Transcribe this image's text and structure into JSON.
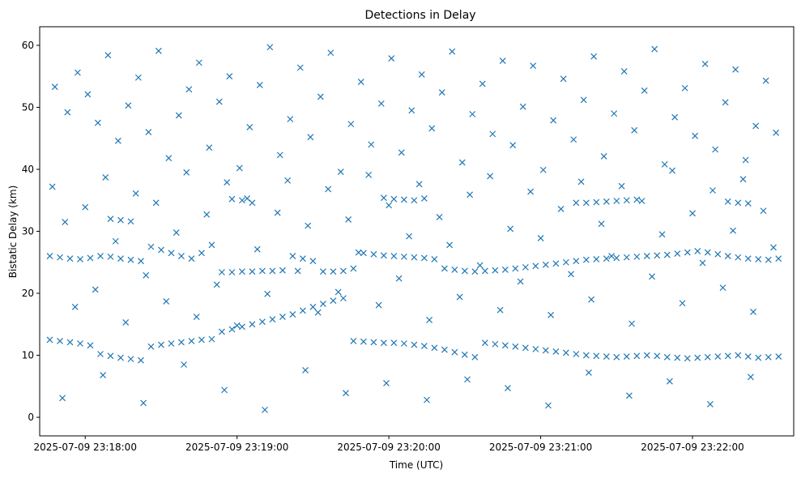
{
  "chart_data": {
    "type": "scatter",
    "title": "Detections in Delay",
    "xlabel": "Time (UTC)",
    "ylabel": "Bistatic Delay (km)",
    "x_start": "2025-07-09 23:17:46",
    "x_end": "2025-07-09 23:22:36",
    "xlim": [
      "2025-07-09 23:17:42",
      "2025-07-09 23:22:40"
    ],
    "ylim": [
      -3,
      63
    ],
    "x_ticks": [
      "2025-07-09 23:18:00",
      "2025-07-09 23:19:00",
      "2025-07-09 23:20:00",
      "2025-07-09 23:21:00",
      "2025-07-09 23:22:00"
    ],
    "y_ticks": [
      0,
      10,
      20,
      30,
      40,
      50,
      60
    ],
    "grid": false,
    "marker": "x",
    "color": "#1f77b4",
    "series": [
      {
        "x": [
          "2025-07-09 23:17:46",
          "2025-07-09 23:17:50",
          "2025-07-09 23:17:54",
          "2025-07-09 23:17:58",
          "2025-07-09 23:18:02",
          "2025-07-09 23:18:06",
          "2025-07-09 23:18:10",
          "2025-07-09 23:18:14",
          "2025-07-09 23:18:18",
          "2025-07-09 23:18:22",
          "2025-07-09 23:18:26",
          "2025-07-09 23:18:30",
          "2025-07-09 23:18:34",
          "2025-07-09 23:18:38",
          "2025-07-09 23:18:42",
          "2025-07-09 23:18:46",
          "2025-07-09 23:18:50",
          "2025-07-09 23:18:54",
          "2025-07-09 23:18:58",
          "2025-07-09 23:19:02",
          "2025-07-09 23:19:06",
          "2025-07-09 23:19:10",
          "2025-07-09 23:19:14",
          "2025-07-09 23:19:18",
          "2025-07-09 23:19:22",
          "2025-07-09 23:19:26",
          "2025-07-09 23:19:30",
          "2025-07-09 23:19:34",
          "2025-07-09 23:19:38",
          "2025-07-09 23:19:42",
          "2025-07-09 23:19:46",
          "2025-07-09 23:19:50",
          "2025-07-09 23:19:54",
          "2025-07-09 23:19:58",
          "2025-07-09 23:20:02",
          "2025-07-09 23:20:06",
          "2025-07-09 23:20:10",
          "2025-07-09 23:20:14",
          "2025-07-09 23:20:18",
          "2025-07-09 23:20:22",
          "2025-07-09 23:20:26",
          "2025-07-09 23:20:30",
          "2025-07-09 23:20:34",
          "2025-07-09 23:20:38",
          "2025-07-09 23:20:42",
          "2025-07-09 23:20:46",
          "2025-07-09 23:20:50",
          "2025-07-09 23:20:54",
          "2025-07-09 23:20:58",
          "2025-07-09 23:21:02",
          "2025-07-09 23:21:06",
          "2025-07-09 23:21:10",
          "2025-07-09 23:21:14",
          "2025-07-09 23:21:18",
          "2025-07-09 23:21:22",
          "2025-07-09 23:21:26",
          "2025-07-09 23:21:30",
          "2025-07-09 23:21:34",
          "2025-07-09 23:21:38",
          "2025-07-09 23:21:42",
          "2025-07-09 23:21:46",
          "2025-07-09 23:21:50",
          "2025-07-09 23:21:54",
          "2025-07-09 23:21:58",
          "2025-07-09 23:22:02",
          "2025-07-09 23:22:06",
          "2025-07-09 23:22:10",
          "2025-07-09 23:22:14",
          "2025-07-09 23:22:18",
          "2025-07-09 23:22:22",
          "2025-07-09 23:22:26",
          "2025-07-09 23:22:30",
          "2025-07-09 23:22:34"
        ],
        "y": [
          12.5,
          12.3,
          12.1,
          11.9,
          11.6,
          10.2,
          9.9,
          9.6,
          9.4,
          9.2,
          11.4,
          11.7,
          11.9,
          12.1,
          12.3,
          12.5,
          12.6,
          13.8,
          14.2,
          14.6,
          15.0,
          15.4,
          15.8,
          16.2,
          16.6,
          17.2,
          17.8,
          18.3,
          18.8,
          19.2,
          12.3,
          12.2,
          12.1,
          12.0,
          12.0,
          11.9,
          11.7,
          11.5,
          11.2,
          10.9,
          10.5,
          10.1,
          9.7,
          12.0,
          11.8,
          11.6,
          11.4,
          11.2,
          11.0,
          10.8,
          10.6,
          10.4,
          10.2,
          10.0,
          9.9,
          9.8,
          9.7,
          9.8,
          9.9,
          10.0,
          9.9,
          9.7,
          9.6,
          9.5,
          9.6,
          9.7,
          9.8,
          9.9,
          10.0,
          9.8,
          9.6,
          9.7,
          9.8
        ]
      },
      {
        "x": [
          "2025-07-09 23:17:46",
          "2025-07-09 23:17:50",
          "2025-07-09 23:17:54",
          "2025-07-09 23:17:58",
          "2025-07-09 23:18:02",
          "2025-07-09 23:18:06",
          "2025-07-09 23:18:10",
          "2025-07-09 23:18:14",
          "2025-07-09 23:18:18",
          "2025-07-09 23:18:22",
          "2025-07-09 23:18:26",
          "2025-07-09 23:18:30",
          "2025-07-09 23:18:34",
          "2025-07-09 23:18:38",
          "2025-07-09 23:18:42",
          "2025-07-09 23:18:46",
          "2025-07-09 23:18:50",
          "2025-07-09 23:18:54",
          "2025-07-09 23:18:58",
          "2025-07-09 23:19:02",
          "2025-07-09 23:19:06",
          "2025-07-09 23:19:10",
          "2025-07-09 23:19:14",
          "2025-07-09 23:19:18",
          "2025-07-09 23:19:22",
          "2025-07-09 23:19:26",
          "2025-07-09 23:19:30",
          "2025-07-09 23:19:34",
          "2025-07-09 23:19:38",
          "2025-07-09 23:19:42",
          "2025-07-09 23:19:46",
          "2025-07-09 23:19:50",
          "2025-07-09 23:19:54",
          "2025-07-09 23:19:58",
          "2025-07-09 23:20:02",
          "2025-07-09 23:20:06",
          "2025-07-09 23:20:10",
          "2025-07-09 23:20:14",
          "2025-07-09 23:20:18",
          "2025-07-09 23:20:22",
          "2025-07-09 23:20:26",
          "2025-07-09 23:20:30",
          "2025-07-09 23:20:34",
          "2025-07-09 23:20:38",
          "2025-07-09 23:20:42",
          "2025-07-09 23:20:46",
          "2025-07-09 23:20:50",
          "2025-07-09 23:20:54",
          "2025-07-09 23:20:58",
          "2025-07-09 23:21:02",
          "2025-07-09 23:21:06",
          "2025-07-09 23:21:10",
          "2025-07-09 23:21:14",
          "2025-07-09 23:21:18",
          "2025-07-09 23:21:22",
          "2025-07-09 23:21:26",
          "2025-07-09 23:21:30",
          "2025-07-09 23:21:34",
          "2025-07-09 23:21:38",
          "2025-07-09 23:21:42",
          "2025-07-09 23:21:46",
          "2025-07-09 23:21:50",
          "2025-07-09 23:21:54",
          "2025-07-09 23:21:58",
          "2025-07-09 23:22:02",
          "2025-07-09 23:22:06",
          "2025-07-09 23:22:10",
          "2025-07-09 23:22:14",
          "2025-07-09 23:22:18",
          "2025-07-09 23:22:22",
          "2025-07-09 23:22:26",
          "2025-07-09 23:22:30",
          "2025-07-09 23:22:34"
        ],
        "y": [
          26.0,
          25.8,
          25.6,
          25.5,
          25.7,
          26.0,
          25.9,
          25.6,
          25.4,
          25.2,
          27.5,
          27.0,
          26.5,
          26.0,
          25.6,
          26.5,
          27.8,
          23.4,
          23.4,
          23.5,
          23.5,
          23.6,
          23.6,
          23.7,
          26.0,
          25.6,
          25.2,
          23.5,
          23.5,
          23.6,
          24.0,
          26.5,
          26.3,
          26.1,
          26.0,
          25.9,
          25.8,
          25.7,
          25.5,
          24.0,
          23.8,
          23.6,
          23.5,
          23.6,
          23.7,
          23.8,
          24.0,
          24.2,
          24.4,
          24.6,
          24.8,
          25.0,
          25.2,
          25.4,
          25.5,
          25.6,
          25.7,
          25.8,
          25.9,
          26.0,
          26.1,
          26.2,
          26.4,
          26.6,
          26.8,
          26.6,
          26.3,
          26.0,
          25.8,
          25.6,
          25.5,
          25.4,
          25.6
        ]
      },
      {
        "x": [
          "2025-07-09 23:18:10",
          "2025-07-09 23:18:14",
          "2025-07-09 23:18:18",
          "2025-07-09 23:18:58",
          "2025-07-09 23:19:02",
          "2025-07-09 23:19:06",
          "2025-07-09 23:19:58",
          "2025-07-09 23:20:02",
          "2025-07-09 23:20:06",
          "2025-07-09 23:20:10",
          "2025-07-09 23:20:14",
          "2025-07-09 23:21:14",
          "2025-07-09 23:21:18",
          "2025-07-09 23:21:22",
          "2025-07-09 23:21:26",
          "2025-07-09 23:21:30",
          "2025-07-09 23:21:34",
          "2025-07-09 23:21:38",
          "2025-07-09 23:22:14",
          "2025-07-09 23:22:18",
          "2025-07-09 23:22:22"
        ],
        "y": [
          32.0,
          31.8,
          31.6,
          35.2,
          35.0,
          34.6,
          35.4,
          35.2,
          35.1,
          35.0,
          35.3,
          34.6,
          34.6,
          34.7,
          34.8,
          34.9,
          35.0,
          35.1,
          34.8,
          34.6,
          34.5
        ]
      },
      {
        "x": [
          "2025-07-09 23:17:48",
          "2025-07-09 23:17:53",
          "2025-07-09 23:17:57",
          "2025-07-09 23:18:01",
          "2025-07-09 23:18:05",
          "2025-07-09 23:18:09",
          "2025-07-09 23:18:13",
          "2025-07-09 23:18:17",
          "2025-07-09 23:18:21",
          "2025-07-09 23:18:25",
          "2025-07-09 23:18:29",
          "2025-07-09 23:18:33",
          "2025-07-09 23:18:37",
          "2025-07-09 23:18:41",
          "2025-07-09 23:18:45",
          "2025-07-09 23:18:49",
          "2025-07-09 23:18:53",
          "2025-07-09 23:18:57",
          "2025-07-09 23:19:01",
          "2025-07-09 23:19:05",
          "2025-07-09 23:19:09",
          "2025-07-09 23:19:13",
          "2025-07-09 23:19:17",
          "2025-07-09 23:19:21",
          "2025-07-09 23:19:25",
          "2025-07-09 23:19:29",
          "2025-07-09 23:19:33",
          "2025-07-09 23:19:37",
          "2025-07-09 23:19:41",
          "2025-07-09 23:19:45",
          "2025-07-09 23:19:49",
          "2025-07-09 23:19:53",
          "2025-07-09 23:19:57",
          "2025-07-09 23:20:01",
          "2025-07-09 23:20:05",
          "2025-07-09 23:20:09",
          "2025-07-09 23:20:13",
          "2025-07-09 23:20:17",
          "2025-07-09 23:20:21",
          "2025-07-09 23:20:25",
          "2025-07-09 23:20:29",
          "2025-07-09 23:20:33",
          "2025-07-09 23:20:37",
          "2025-07-09 23:20:41",
          "2025-07-09 23:20:45",
          "2025-07-09 23:20:49",
          "2025-07-09 23:20:53",
          "2025-07-09 23:20:57",
          "2025-07-09 23:21:01",
          "2025-07-09 23:21:05",
          "2025-07-09 23:21:09",
          "2025-07-09 23:21:13",
          "2025-07-09 23:21:17",
          "2025-07-09 23:21:21",
          "2025-07-09 23:21:25",
          "2025-07-09 23:21:29",
          "2025-07-09 23:21:33",
          "2025-07-09 23:21:37",
          "2025-07-09 23:21:41",
          "2025-07-09 23:21:45",
          "2025-07-09 23:21:49",
          "2025-07-09 23:21:53",
          "2025-07-09 23:21:57",
          "2025-07-09 23:22:01",
          "2025-07-09 23:22:05",
          "2025-07-09 23:22:09",
          "2025-07-09 23:22:13",
          "2025-07-09 23:22:17",
          "2025-07-09 23:22:21",
          "2025-07-09 23:22:25",
          "2025-07-09 23:22:29",
          "2025-07-09 23:22:33",
          "2025-07-09 23:17:51",
          "2025-07-09 23:18:07",
          "2025-07-09 23:18:23",
          "2025-07-09 23:18:39",
          "2025-07-09 23:18:55",
          "2025-07-09 23:19:11",
          "2025-07-09 23:19:27",
          "2025-07-09 23:19:43",
          "2025-07-09 23:19:59",
          "2025-07-09 23:20:15",
          "2025-07-09 23:20:31",
          "2025-07-09 23:20:47",
          "2025-07-09 23:21:03",
          "2025-07-09 23:21:19",
          "2025-07-09 23:21:35",
          "2025-07-09 23:21:51",
          "2025-07-09 23:22:07",
          "2025-07-09 23:22:23"
        ],
        "y": [
          53.3,
          49.2,
          55.6,
          52.1,
          47.5,
          58.4,
          44.6,
          50.3,
          54.8,
          46.0,
          59.1,
          41.8,
          48.7,
          52.9,
          57.2,
          43.5,
          50.9,
          55.0,
          40.2,
          46.8,
          53.6,
          59.7,
          42.3,
          48.1,
          56.4,
          45.2,
          51.7,
          58.8,
          39.6,
          47.3,
          54.1,
          44.0,
          50.6,
          57.9,
          42.7,
          49.5,
          55.3,
          46.6,
          52.4,
          59.0,
          41.1,
          48.9,
          53.8,
          45.7,
          57.5,
          43.9,
          50.1,
          56.7,
          39.9,
          47.9,
          54.6,
          44.8,
          51.2,
          58.2,
          42.1,
          49.0,
          55.8,
          46.3,
          52.7,
          59.4,
          40.8,
          48.4,
          53.1,
          45.4,
          57.0,
          43.2,
          50.8,
          56.1,
          41.5,
          47.0,
          54.3,
          45.9,
          3.1,
          6.8,
          2.3,
          8.5,
          4.4,
          1.2,
          7.6,
          3.9,
          5.5,
          2.8,
          6.1,
          4.7,
          1.9,
          7.2,
          3.5,
          5.8,
          2.1,
          6.5
        ]
      },
      {
        "x": [
          "2025-07-09 23:17:47",
          "2025-07-09 23:17:52",
          "2025-07-09 23:17:56",
          "2025-07-09 23:18:00",
          "2025-07-09 23:18:04",
          "2025-07-09 23:18:08",
          "2025-07-09 23:18:12",
          "2025-07-09 23:18:16",
          "2025-07-09 23:18:20",
          "2025-07-09 23:18:24",
          "2025-07-09 23:18:28",
          "2025-07-09 23:18:32",
          "2025-07-09 23:18:36",
          "2025-07-09 23:18:40",
          "2025-07-09 23:18:44",
          "2025-07-09 23:18:48",
          "2025-07-09 23:18:52",
          "2025-07-09 23:18:56",
          "2025-07-09 23:19:00",
          "2025-07-09 23:19:04",
          "2025-07-09 23:19:08",
          "2025-07-09 23:19:12",
          "2025-07-09 23:19:16",
          "2025-07-09 23:19:20",
          "2025-07-09 23:19:24",
          "2025-07-09 23:19:28",
          "2025-07-09 23:19:32",
          "2025-07-09 23:19:36",
          "2025-07-09 23:19:40",
          "2025-07-09 23:19:44",
          "2025-07-09 23:19:48",
          "2025-07-09 23:19:52",
          "2025-07-09 23:19:56",
          "2025-07-09 23:20:00",
          "2025-07-09 23:20:04",
          "2025-07-09 23:20:08",
          "2025-07-09 23:20:12",
          "2025-07-09 23:20:16",
          "2025-07-09 23:20:20",
          "2025-07-09 23:20:24",
          "2025-07-09 23:20:28",
          "2025-07-09 23:20:32",
          "2025-07-09 23:20:36",
          "2025-07-09 23:20:40",
          "2025-07-09 23:20:44",
          "2025-07-09 23:20:48",
          "2025-07-09 23:20:52",
          "2025-07-09 23:20:56",
          "2025-07-09 23:21:00",
          "2025-07-09 23:21:04",
          "2025-07-09 23:21:08",
          "2025-07-09 23:21:12",
          "2025-07-09 23:21:16",
          "2025-07-09 23:21:20",
          "2025-07-09 23:21:24",
          "2025-07-09 23:21:28",
          "2025-07-09 23:21:32",
          "2025-07-09 23:21:36",
          "2025-07-09 23:21:40",
          "2025-07-09 23:21:44",
          "2025-07-09 23:21:48",
          "2025-07-09 23:21:52",
          "2025-07-09 23:21:56",
          "2025-07-09 23:22:00",
          "2025-07-09 23:22:04",
          "2025-07-09 23:22:08",
          "2025-07-09 23:22:12",
          "2025-07-09 23:22:16",
          "2025-07-09 23:22:20",
          "2025-07-09 23:22:24",
          "2025-07-09 23:22:28",
          "2025-07-09 23:22:32"
        ],
        "y": [
          37.2,
          31.5,
          17.8,
          33.9,
          20.6,
          38.7,
          28.4,
          15.3,
          36.1,
          22.9,
          34.6,
          18.7,
          29.8,
          39.5,
          16.2,
          32.7,
          21.4,
          37.9,
          14.8,
          35.3,
          27.1,
          19.9,
          33.0,
          38.2,
          23.6,
          30.9,
          16.9,
          36.8,
          20.2,
          31.9,
          26.6,
          39.1,
          18.1,
          34.2,
          22.4,
          29.2,
          37.6,
          15.7,
          32.3,
          27.8,
          19.4,
          35.9,
          24.5,
          38.9,
          17.3,
          30.4,
          21.9,
          36.4,
          28.9,
          16.5,
          33.6,
          23.1,
          38.0,
          19.0,
          31.2,
          26.0,
          37.3,
          15.1,
          34.9,
          22.7,
          29.5,
          39.8,
          18.4,
          32.9,
          24.9,
          36.6,
          20.9,
          30.1,
          38.4,
          17.0,
          33.3,
          27.4
        ]
      }
    ]
  }
}
